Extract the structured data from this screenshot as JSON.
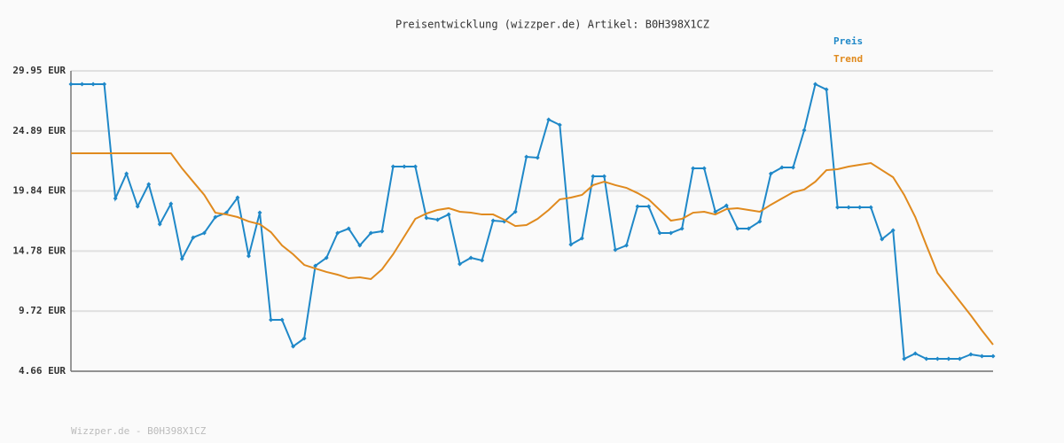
{
  "chart_data": {
    "type": "line",
    "title": "Preisentwicklung (wizzper.de) Artikel: B0H398X1CZ",
    "footer": "Wizzper.de - B0H398X1CZ",
    "legend": "top-right",
    "grid": true,
    "ylim": [
      4.66,
      29.95
    ],
    "yticks": [
      {
        "value": 4.66,
        "label": "4.66 EUR"
      },
      {
        "value": 9.72,
        "label": "9.72 EUR"
      },
      {
        "value": 14.78,
        "label": "14.78 EUR"
      },
      {
        "value": 19.84,
        "label": "19.84 EUR"
      },
      {
        "value": 24.89,
        "label": "24.89 EUR"
      },
      {
        "value": 29.95,
        "label": "29.95 EUR"
      }
    ],
    "series": [
      {
        "name": "Preis",
        "color": "#1f88c8",
        "markers": true,
        "values": [
          28.83,
          28.83,
          28.83,
          28.83,
          19.21,
          21.3,
          18.54,
          20.4,
          17.04,
          18.76,
          14.13,
          15.92,
          16.3,
          17.64,
          18.01,
          19.28,
          14.36,
          18.01,
          8.99,
          8.99,
          6.75,
          7.42,
          13.54,
          14.21,
          16.3,
          16.67,
          15.25,
          16.3,
          16.45,
          21.89,
          21.89,
          21.89,
          17.57,
          17.42,
          17.86,
          13.69,
          14.21,
          13.99,
          17.34,
          17.27,
          18.09,
          22.71,
          22.64,
          25.85,
          25.4,
          15.33,
          15.85,
          21.07,
          21.07,
          14.88,
          15.25,
          18.54,
          18.54,
          16.3,
          16.3,
          16.67,
          21.74,
          21.74,
          18.09,
          18.61,
          16.67,
          16.67,
          17.27,
          21.3,
          21.82,
          21.82,
          24.95,
          28.83,
          28.38,
          18.46,
          18.46,
          18.46,
          18.46,
          15.78,
          16.52,
          5.7,
          6.15,
          5.7,
          5.7,
          5.7,
          5.7,
          6.08,
          5.93,
          5.93
        ]
      },
      {
        "name": "Trend",
        "color": "#e08a1e",
        "markers": false,
        "values": [
          23.01,
          23.01,
          23.01,
          23.01,
          23.01,
          23.01,
          23.01,
          23.01,
          23.01,
          23.01,
          21.74,
          20.62,
          19.51,
          18.01,
          17.86,
          17.64,
          17.27,
          17.04,
          16.37,
          15.25,
          14.51,
          13.61,
          13.31,
          13.02,
          12.79,
          12.49,
          12.57,
          12.42,
          13.24,
          14.51,
          16.0,
          17.49,
          17.94,
          18.24,
          18.39,
          18.09,
          18.01,
          17.86,
          17.86,
          17.42,
          16.89,
          16.97,
          17.49,
          18.24,
          19.13,
          19.28,
          19.51,
          20.33,
          20.62,
          20.33,
          20.1,
          19.66,
          19.13,
          18.24,
          17.34,
          17.49,
          18.01,
          18.09,
          17.86,
          18.31,
          18.39,
          18.24,
          18.09,
          18.68,
          19.21,
          19.73,
          19.96,
          20.62,
          21.59,
          21.67,
          21.89,
          22.04,
          22.19,
          21.59,
          21.0,
          19.51,
          17.64,
          15.25,
          12.94,
          11.75,
          10.55,
          9.36,
          8.09,
          6.9
        ]
      }
    ]
  }
}
